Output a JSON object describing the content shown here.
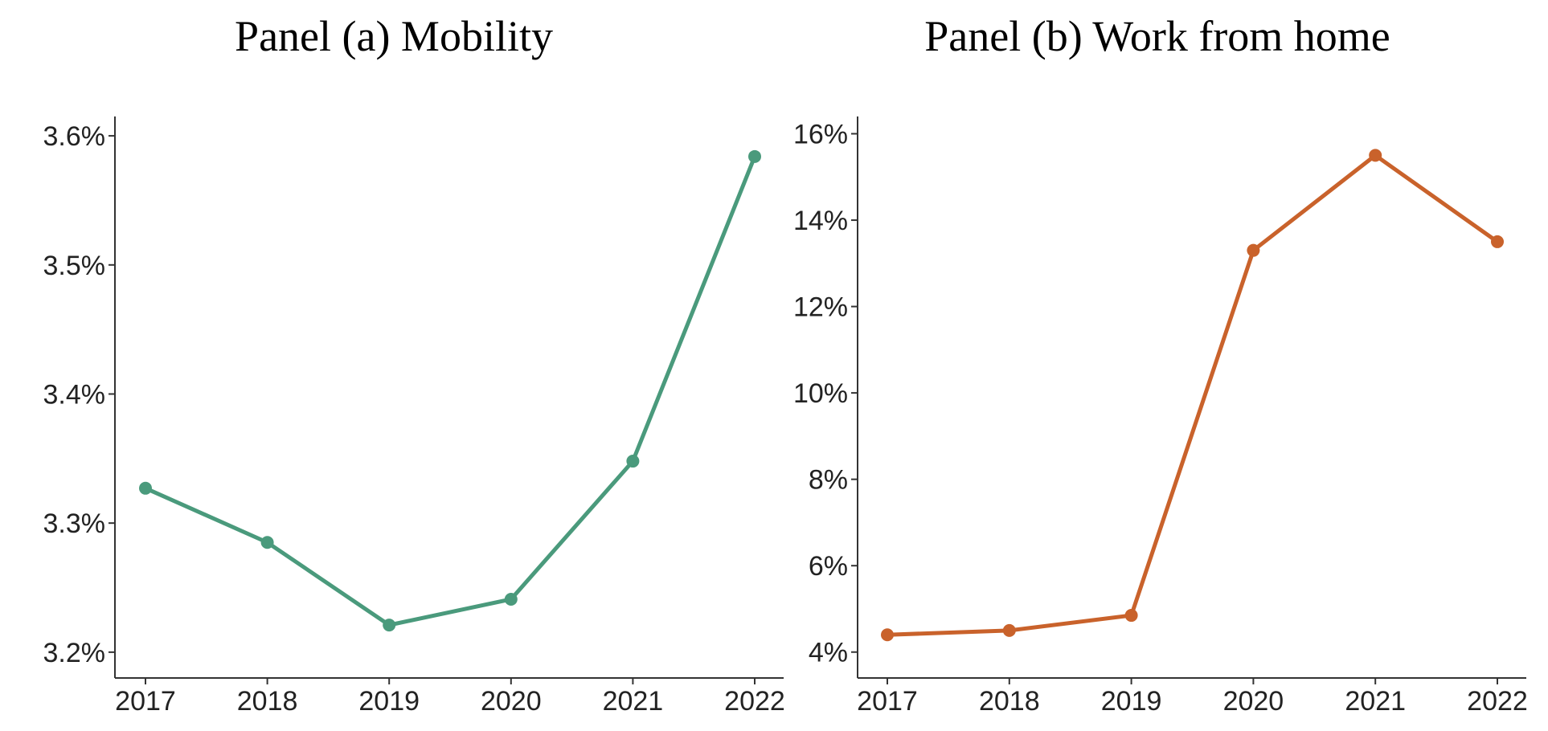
{
  "chart_data": [
    {
      "type": "line",
      "title": "Panel (a) Mobility",
      "xlabel": "",
      "ylabel": "",
      "x": [
        2017,
        2018,
        2019,
        2020,
        2021,
        2022
      ],
      "x_tick_labels": [
        "2017",
        "2018",
        "2019",
        "2020",
        "2021",
        "2022"
      ],
      "series": [
        {
          "name": "Mobility",
          "values": [
            3.327,
            3.285,
            3.221,
            3.241,
            3.348,
            3.584
          ],
          "color": "#4a9a7c"
        }
      ],
      "ylim": [
        3.18,
        3.615
      ],
      "y_ticks": [
        3.2,
        3.3,
        3.4,
        3.5,
        3.6
      ],
      "y_tick_labels": [
        "3.2%",
        "3.3%",
        "3.4%",
        "3.5%",
        "3.6%"
      ],
      "grid": false,
      "legend": "none"
    },
    {
      "type": "line",
      "title": "Panel (b) Work from home",
      "xlabel": "",
      "ylabel": "",
      "x": [
        2017,
        2018,
        2019,
        2020,
        2021,
        2022
      ],
      "x_tick_labels": [
        "2017",
        "2018",
        "2019",
        "2020",
        "2021",
        "2022"
      ],
      "series": [
        {
          "name": "Work from home",
          "values": [
            4.4,
            4.5,
            4.85,
            13.3,
            15.5,
            13.5
          ],
          "color": "#c9622b"
        }
      ],
      "ylim": [
        3.4,
        16.4
      ],
      "y_ticks": [
        4,
        6,
        8,
        10,
        12,
        14,
        16
      ],
      "y_tick_labels": [
        "4%",
        "6%",
        "8%",
        "10%",
        "12%",
        "14%",
        "16%"
      ],
      "grid": false,
      "legend": "none"
    }
  ]
}
